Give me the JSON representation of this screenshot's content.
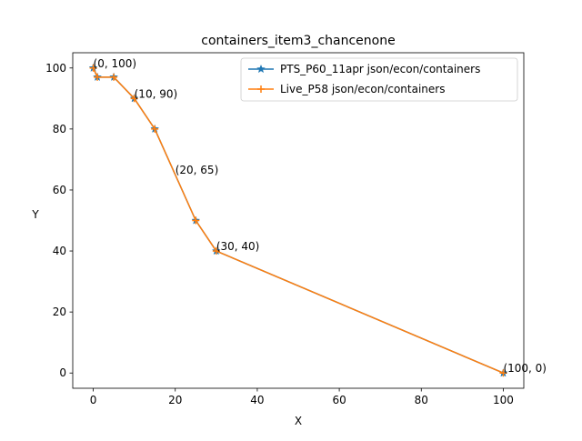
{
  "chart_data": {
    "type": "line",
    "title": "containers_item3_chancenone",
    "xlabel": "X",
    "ylabel": "Y",
    "xlim": [
      -5,
      105
    ],
    "ylim": [
      -5,
      105
    ],
    "xticks": [
      0,
      20,
      40,
      60,
      80,
      100
    ],
    "yticks": [
      0,
      20,
      40,
      60,
      80,
      100
    ],
    "grid": false,
    "legend_position": "top-right",
    "series": [
      {
        "name": "PTS_P60_11apr json/econ/containers",
        "color": "#1f77b4",
        "marker": "star",
        "x": [
          0,
          1,
          5,
          10,
          15,
          25,
          30,
          100
        ],
        "y": [
          100,
          97,
          97,
          90,
          80,
          50,
          40,
          0
        ]
      },
      {
        "name": "Live_P58 json/econ/containers",
        "color": "#ff7f0e",
        "marker": "plus",
        "x": [
          0,
          1,
          5,
          10,
          15,
          25,
          30,
          100
        ],
        "y": [
          100,
          97,
          97,
          90,
          80,
          50,
          40,
          0
        ]
      }
    ],
    "annotations": [
      {
        "text": "(0, 100)",
        "x": 0,
        "y": 100
      },
      {
        "text": "(10, 90)",
        "x": 10,
        "y": 90
      },
      {
        "text": "(20, 65)",
        "x": 20,
        "y": 65
      },
      {
        "text": "(30, 40)",
        "x": 30,
        "y": 40
      },
      {
        "text": "(100, 0)",
        "x": 100,
        "y": 0
      }
    ]
  }
}
